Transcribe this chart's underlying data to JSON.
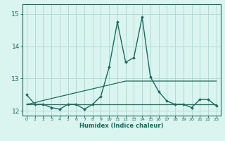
{
  "x": [
    0,
    1,
    2,
    3,
    4,
    5,
    6,
    7,
    8,
    9,
    10,
    11,
    12,
    13,
    14,
    15,
    16,
    17,
    18,
    19,
    20,
    21,
    22,
    23
  ],
  "y_main": [
    12.5,
    12.2,
    12.2,
    12.1,
    12.05,
    12.2,
    12.2,
    12.05,
    12.2,
    12.45,
    13.35,
    14.75,
    13.5,
    13.65,
    14.9,
    13.05,
    12.6,
    12.3,
    12.2,
    12.2,
    12.1,
    12.35,
    12.35,
    12.15
  ],
  "y_trend1": [
    12.2,
    12.2,
    12.2,
    12.2,
    12.2,
    12.2,
    12.2,
    12.2,
    12.2,
    12.2,
    12.2,
    12.2,
    12.2,
    12.2,
    12.2,
    12.2,
    12.2,
    12.2,
    12.2,
    12.2,
    12.2,
    12.2,
    12.2,
    12.2
  ],
  "y_trend2": [
    12.2,
    12.25,
    12.32,
    12.38,
    12.44,
    12.5,
    12.56,
    12.62,
    12.68,
    12.74,
    12.8,
    12.86,
    12.92,
    12.92,
    12.92,
    12.92,
    12.92,
    12.92,
    12.92,
    12.92,
    12.92,
    12.92,
    12.92,
    12.92
  ],
  "line_color": "#1a6b5a",
  "bg_color": "#daf4f0",
  "grid_color": "#acd8d2",
  "xlabel": "Humidex (Indice chaleur)",
  "ylim": [
    11.85,
    15.3
  ],
  "xlim": [
    -0.5,
    23.5
  ],
  "yticks": [
    12,
    13,
    14,
    15
  ],
  "xticks": [
    0,
    1,
    2,
    3,
    4,
    5,
    6,
    7,
    8,
    9,
    10,
    11,
    12,
    13,
    14,
    15,
    16,
    17,
    18,
    19,
    20,
    21,
    22,
    23
  ]
}
